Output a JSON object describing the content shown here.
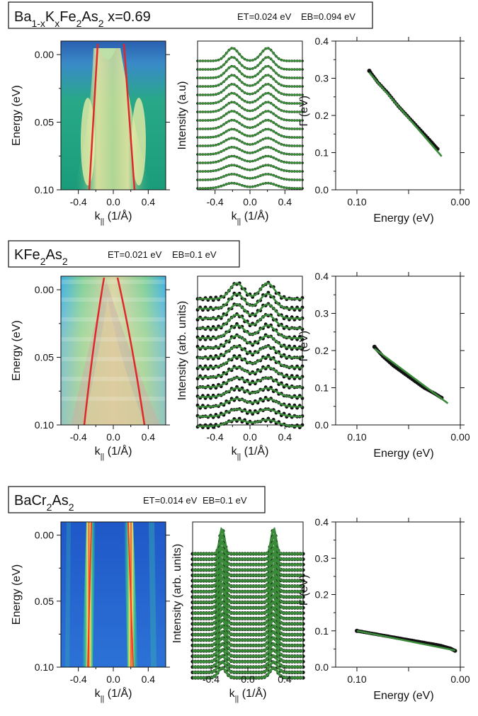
{
  "rows": [
    {
      "name_html": [
        "Ba",
        {
          "sub": "1-x"
        },
        "K",
        {
          "sub": "x"
        },
        "Fe",
        {
          "sub": "2"
        },
        "As",
        {
          "sub": "2"
        },
        " x=0.69"
      ],
      "et": "ET=0.024 eV",
      "eb": "EB=0.094 eV",
      "map_style": "bkfa",
      "edc_ylabel": "Intensity (a.u)",
      "edc_style": "bkfa"
    },
    {
      "name_html": [
        "KFe",
        {
          "sub": "2"
        },
        "As",
        {
          "sub": "2"
        }
      ],
      "et": "ET=0.021 eV",
      "eb": "EB=0.1 eV",
      "map_style": "kfa",
      "edc_ylabel": "Intensity (arb. units)",
      "edc_style": "kfa"
    },
    {
      "name_html": [
        "BaCr",
        {
          "sub": "2"
        },
        "As",
        {
          "sub": "2"
        }
      ],
      "et": "ET=0.014 eV",
      "eb": "EB=0.1 eV",
      "map_style": "bca",
      "edc_ylabel": "Intensity (arb. units)",
      "edc_style": "bca"
    }
  ],
  "axis_labels": {
    "energy": "Energy (eV)",
    "k": "k",
    "k_sub": "||",
    "k_unit": " (1/Å)",
    "gamma": "Γ (eV)",
    "energy_bottom": "Energy (eV)"
  },
  "ticks": {
    "map_y": [
      "0.00",
      "0.05",
      "0.10"
    ],
    "map_x": [
      "-0.4",
      "0.0",
      "0.4"
    ],
    "gamma_y": [
      "0.0",
      "0.1",
      "0.2",
      "0.3",
      "0.4"
    ],
    "gamma_x": [
      "0.10",
      "0.00"
    ]
  },
  "colors": {
    "fit_green": "#3a8a3a",
    "data_black": "#111111",
    "band_red": "#e0282a"
  },
  "chart_data": [
    {
      "type": "heatmap",
      "panel": "row1-map",
      "xlabel": "k|| (1/Å)",
      "ylabel": "Energy (eV)",
      "xlim": [
        -0.6,
        0.6
      ],
      "ylim": [
        0.1,
        -0.01
      ],
      "band_dispersion": {
        "name": "",
        "k_at_E0": [
          -0.21,
          0.19
        ],
        "k_at_E010": [
          -0.27,
          0.26
        ]
      }
    },
    {
      "type": "line",
      "panel": "row1-edc",
      "xlabel": "k|| (1/Å)",
      "ylabel": "Intensity (a.u)",
      "xlim": [
        -0.6,
        0.6
      ],
      "n_curves": 16,
      "peaks_k": [
        -0.2,
        0.2
      ]
    },
    {
      "type": "scatter",
      "panel": "row1-gamma",
      "xlabel": "Energy (eV)",
      "ylabel": "Γ (eV)",
      "xlim": [
        0.1,
        0.0
      ],
      "ylim": [
        0.0,
        0.4
      ],
      "series": [
        {
          "name": "",
          "x": [
            0.088,
            0.08,
            0.07,
            0.06,
            0.05,
            0.04,
            0.03,
            0.022
          ],
          "y": [
            0.32,
            0.29,
            0.26,
            0.225,
            0.195,
            0.165,
            0.135,
            0.11
          ]
        }
      ],
      "fit": {
        "x": [
          0.088,
          0.018
        ],
        "y": [
          0.315,
          0.09
        ]
      }
    },
    {
      "type": "heatmap",
      "panel": "row2-map",
      "xlabel": "k|| (1/Å)",
      "ylabel": "Energy (eV)",
      "xlim": [
        -0.6,
        0.6
      ],
      "ylim": [
        0.1,
        -0.01
      ],
      "band_dispersion": {
        "name": "",
        "k_at_E0": [
          -0.06,
          0.09
        ],
        "k_at_E010": [
          -0.3,
          0.35
        ]
      }
    },
    {
      "type": "line",
      "panel": "row2-edc",
      "xlabel": "k|| (1/Å)",
      "ylabel": "Intensity (arb. units)",
      "xlim": [
        -0.6,
        0.6
      ],
      "n_curves": 14,
      "peaks_k": [
        -0.15,
        0.2
      ]
    },
    {
      "type": "scatter",
      "panel": "row2-gamma",
      "xlabel": "Energy (eV)",
      "ylabel": "Γ (eV)",
      "xlim": [
        0.1,
        0.0
      ],
      "ylim": [
        0.0,
        0.4
      ],
      "series": [
        {
          "name": "",
          "x": [
            0.083,
            0.075,
            0.065,
            0.055,
            0.045,
            0.035,
            0.025,
            0.018
          ],
          "y": [
            0.21,
            0.185,
            0.16,
            0.14,
            0.12,
            0.1,
            0.085,
            0.073
          ]
        }
      ],
      "fit": {
        "x": [
          0.083,
          0.012
        ],
        "y": [
          0.205,
          0.058
        ]
      }
    },
    {
      "type": "heatmap",
      "panel": "row3-map",
      "xlabel": "k|| (1/Å)",
      "ylabel": "Energy (eV)",
      "xlim": [
        -0.6,
        0.6
      ],
      "ylim": [
        0.1,
        -0.01
      ],
      "band_dispersion": {
        "name": "",
        "k_at_E0": [
          -0.23,
          0.2
        ],
        "k_at_E010": [
          -0.27,
          0.25
        ]
      }
    },
    {
      "type": "line",
      "panel": "row3-edc",
      "xlabel": "k|| (1/Å)",
      "ylabel": "Intensity (arb. units)",
      "xlim": [
        -0.6,
        0.6
      ],
      "n_curves": 24,
      "peaks_k": [
        -0.28,
        0.28
      ]
    },
    {
      "type": "scatter",
      "panel": "row3-gamma",
      "xlabel": "Energy (eV)",
      "ylabel": "Γ (eV)",
      "xlim": [
        0.1,
        0.0
      ],
      "ylim": [
        0.0,
        0.4
      ],
      "series": [
        {
          "name": "",
          "x": [
            0.1,
            0.09,
            0.08,
            0.07,
            0.06,
            0.05,
            0.04,
            0.03,
            0.02,
            0.01,
            0.005
          ],
          "y": [
            0.1,
            0.095,
            0.09,
            0.085,
            0.08,
            0.075,
            0.07,
            0.065,
            0.06,
            0.052,
            0.045
          ]
        }
      ],
      "fit": {
        "x": [
          0.1,
          0.005
        ],
        "y": [
          0.1,
          0.046
        ]
      }
    }
  ]
}
